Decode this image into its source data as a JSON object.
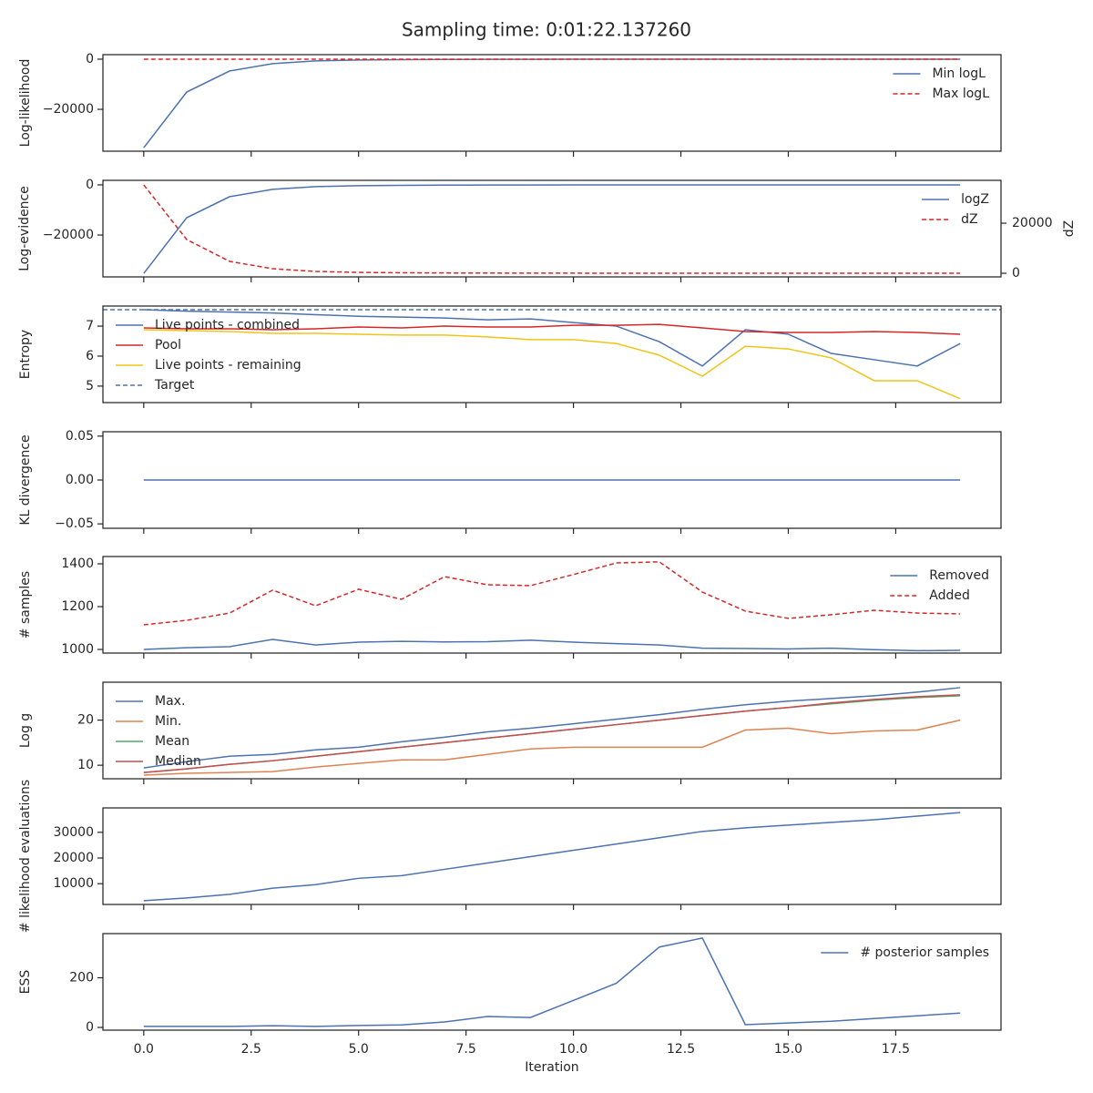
{
  "title": "Sampling time: 0:01:22.137260",
  "chart_data": [
    {
      "type": "line",
      "ylabel": "Log-likelihood",
      "x": [
        0,
        1,
        2,
        3,
        4,
        5,
        6,
        7,
        8,
        9,
        10,
        11,
        12,
        13,
        14,
        15,
        16,
        17,
        18,
        19
      ],
      "xlim": [
        -0.95,
        19.95
      ],
      "xticks": [
        {
          "value": 0,
          "label": "0.0"
        },
        2.5,
        {
          "value": 5,
          "label": "5.0"
        },
        7.5,
        {
          "value": 10,
          "label": "10.0"
        },
        12.5,
        {
          "value": 15,
          "label": "15.0"
        },
        17.5
      ],
      "ylim": [
        -36700,
        1800
      ],
      "yticks": [
        {
          "value": -20000,
          "label": "−20000"
        },
        0
      ],
      "legend": "upper right",
      "series": [
        {
          "name": "Min logL",
          "color": "#4c72b0",
          "linestyle": "solid",
          "values": [
            -35300,
            -13100,
            -4700,
            -1800,
            -700,
            -350,
            -200,
            -120,
            -80,
            -50,
            -30,
            -20,
            -15,
            -10,
            -8,
            -5,
            -4,
            -3,
            -2,
            -1
          ]
        },
        {
          "name": "Max logL",
          "color": "#d62728",
          "linestyle": "dashed",
          "values": [
            0,
            0,
            0,
            0,
            0,
            0,
            0,
            0,
            0,
            0,
            0,
            0,
            0,
            0,
            0,
            0,
            0,
            0,
            0,
            0
          ]
        }
      ]
    },
    {
      "type": "line",
      "ylabel": "Log-evidence",
      "y2label": "dZ",
      "x": [
        0,
        1,
        2,
        3,
        4,
        5,
        6,
        7,
        8,
        9,
        10,
        11,
        12,
        13,
        14,
        15,
        16,
        17,
        18,
        19
      ],
      "xlim": [
        -0.95,
        19.95
      ],
      "xticks": [
        {
          "value": 0,
          "label": "0.0"
        },
        2.5,
        {
          "value": 5,
          "label": "5.0"
        },
        7.5,
        {
          "value": 10,
          "label": "10.0"
        },
        12.5,
        {
          "value": 15,
          "label": "15.0"
        },
        17.5
      ],
      "ylim": [
        -36700,
        1800
      ],
      "yticks": [
        {
          "value": -20000,
          "label": "−20000"
        },
        0
      ],
      "y2lim": [
        -1450,
        37100
      ],
      "y2ticks": [
        0,
        20000
      ],
      "legend": "upper right",
      "series": [
        {
          "name": "logZ",
          "color": "#4c72b0",
          "linestyle": "solid",
          "values": [
            -35300,
            -13100,
            -4700,
            -1800,
            -700,
            -350,
            -200,
            -120,
            -80,
            -50,
            -30,
            -20,
            -15,
            -10,
            -8,
            -5,
            -4,
            -3,
            -2,
            -1
          ]
        },
        {
          "name": "dZ",
          "color": "#d62728",
          "linestyle": "dashed",
          "axis": "y2",
          "values": [
            35270,
            13450,
            4730,
            1820,
            730,
            350,
            200,
            120,
            80,
            50,
            30,
            20,
            15,
            10,
            8,
            5,
            4,
            3,
            2,
            1
          ]
        }
      ]
    },
    {
      "type": "line",
      "ylabel": "Entropy",
      "x": [
        0,
        1,
        2,
        3,
        4,
        5,
        6,
        7,
        8,
        9,
        10,
        11,
        12,
        13,
        14,
        15,
        16,
        17,
        18,
        19
      ],
      "xlim": [
        -0.95,
        19.95
      ],
      "xticks": [
        {
          "value": 0,
          "label": "0.0"
        },
        2.5,
        {
          "value": 5,
          "label": "5.0"
        },
        7.5,
        {
          "value": 10,
          "label": "10.0"
        },
        12.5,
        {
          "value": 15,
          "label": "15.0"
        },
        17.5
      ],
      "ylim": [
        4.45,
        7.67
      ],
      "yticks": [
        5,
        6,
        7
      ],
      "legend": "upper left",
      "series": [
        {
          "name": "Live points - combined",
          "color": "#4c72b0",
          "linestyle": "solid",
          "values": [
            7.55,
            7.5,
            7.47,
            7.44,
            7.38,
            7.33,
            7.3,
            7.27,
            7.21,
            7.24,
            7.12,
            7.0,
            6.48,
            5.67,
            6.88,
            6.73,
            6.09,
            5.88,
            5.67,
            6.42
          ]
        },
        {
          "name": "Pool",
          "color": "#d62728",
          "linestyle": "solid",
          "values": [
            6.94,
            6.91,
            6.91,
            6.88,
            6.91,
            6.97,
            6.94,
            7.0,
            6.97,
            6.97,
            7.03,
            7.03,
            7.06,
            6.94,
            6.82,
            6.79,
            6.79,
            6.82,
            6.79,
            6.73
          ]
        },
        {
          "name": "Live points - remaining",
          "color": "#f0c419",
          "linestyle": "solid",
          "values": [
            6.88,
            6.85,
            6.82,
            6.76,
            6.76,
            6.73,
            6.7,
            6.7,
            6.64,
            6.55,
            6.55,
            6.42,
            6.03,
            5.33,
            6.33,
            6.24,
            5.94,
            5.18,
            5.18,
            4.58
          ]
        }
      ],
      "hlines": [
        {
          "name": "Target",
          "color": "#4c72b0",
          "linestyle": "dashed",
          "value": 7.55
        }
      ]
    },
    {
      "type": "line",
      "ylabel": "KL divergence",
      "x": [
        0,
        1,
        2,
        3,
        4,
        5,
        6,
        7,
        8,
        9,
        10,
        11,
        12,
        13,
        14,
        15,
        16,
        17,
        18,
        19
      ],
      "xlim": [
        -0.95,
        19.95
      ],
      "xticks": [
        {
          "value": 0,
          "label": "0.0"
        },
        2.5,
        {
          "value": 5,
          "label": "5.0"
        },
        7.5,
        {
          "value": 10,
          "label": "10.0"
        },
        12.5,
        {
          "value": 15,
          "label": "15.0"
        },
        17.5
      ],
      "ylim": [
        -0.055,
        0.055
      ],
      "yticks": [
        {
          "value": -0.05,
          "label": "−0.05"
        },
        {
          "value": 0,
          "label": "0.00"
        },
        {
          "value": 0.05,
          "label": "0.05"
        }
      ],
      "series": [
        {
          "color": "#4c72b0",
          "linestyle": "solid",
          "values": [
            0,
            0,
            0,
            0,
            0,
            0,
            0,
            0,
            0,
            0,
            0,
            0,
            0,
            0,
            0,
            0,
            0,
            0,
            0,
            0
          ]
        }
      ]
    },
    {
      "type": "line",
      "ylabel": "# samples",
      "x": [
        0,
        1,
        2,
        3,
        4,
        5,
        6,
        7,
        8,
        9,
        10,
        11,
        12,
        13,
        14,
        15,
        16,
        17,
        18,
        19
      ],
      "xlim": [
        -0.95,
        19.95
      ],
      "xticks": [
        {
          "value": 0,
          "label": "0.0"
        },
        2.5,
        {
          "value": 5,
          "label": "5.0"
        },
        7.5,
        {
          "value": 10,
          "label": "10.0"
        },
        12.5,
        {
          "value": 15,
          "label": "15.0"
        },
        17.5
      ],
      "ylim": [
        983,
        1434
      ],
      "yticks": [
        1000,
        1200,
        1400
      ],
      "legend": "upper right",
      "series": [
        {
          "name": "Removed",
          "color": "#4c72b0",
          "linestyle": "solid",
          "values": [
            1000,
            1008,
            1013,
            1047,
            1021,
            1034,
            1038,
            1035,
            1036,
            1043,
            1034,
            1027,
            1021,
            1006,
            1004,
            1002,
            1006,
            999,
            994,
            996
          ]
        },
        {
          "name": "Added",
          "color": "#d62728",
          "linestyle": "dashed",
          "values": [
            1115,
            1136,
            1170,
            1277,
            1204,
            1281,
            1234,
            1340,
            1302,
            1298,
            1350,
            1404,
            1409,
            1268,
            1179,
            1145,
            1162,
            1183,
            1170,
            1166
          ]
        }
      ]
    },
    {
      "type": "line",
      "ylabel": "Log g",
      "x": [
        0,
        1,
        2,
        3,
        4,
        5,
        6,
        7,
        8,
        9,
        10,
        11,
        12,
        13,
        14,
        15,
        16,
        17,
        18,
        19
      ],
      "xlim": [
        -0.95,
        19.95
      ],
      "xticks": [
        {
          "value": 0,
          "label": "0.0"
        },
        2.5,
        {
          "value": 5,
          "label": "5.0"
        },
        7.5,
        {
          "value": 10,
          "label": "10.0"
        },
        12.5,
        {
          "value": 15,
          "label": "15.0"
        },
        17.5
      ],
      "ylim": [
        7.0,
        28.4
      ],
      "yticks": [
        10,
        20
      ],
      "legend": "upper left",
      "series": [
        {
          "name": "Max.",
          "color": "#4c72b0",
          "linestyle": "solid",
          "values": [
            9.4,
            10.8,
            12,
            12.4,
            13.4,
            14,
            15.2,
            16.2,
            17.4,
            18.2,
            19.2,
            20.2,
            21.2,
            22.4,
            23.4,
            24.2,
            24.8,
            25.4,
            26.2,
            27.2
          ]
        },
        {
          "name": "Min.",
          "color": "#dd8452",
          "linestyle": "solid",
          "values": [
            7.8,
            8.2,
            8.4,
            8.6,
            9.6,
            10.4,
            11.2,
            11.2,
            12.4,
            13.6,
            14,
            14,
            14,
            14,
            17.8,
            18.2,
            17,
            17.6,
            17.8,
            20
          ]
        },
        {
          "name": "Mean",
          "color": "#55a868",
          "linestyle": "solid",
          "values": [
            8.4,
            9.2,
            10.2,
            11,
            12,
            13,
            14,
            15,
            16,
            17,
            18,
            19,
            20,
            21,
            22,
            22.8,
            23.6,
            24.4,
            25,
            25.4
          ]
        },
        {
          "name": "Median",
          "color": "#c44e52",
          "linestyle": "solid",
          "values": [
            8.4,
            9.2,
            10.2,
            11,
            12,
            13,
            14,
            15,
            16,
            17,
            18,
            19,
            20,
            21,
            22,
            22.8,
            23.8,
            24.6,
            25.2,
            25.6
          ]
        }
      ]
    },
    {
      "type": "line",
      "ylabel": "# likelihood evaluations",
      "x": [
        0,
        1,
        2,
        3,
        4,
        5,
        6,
        7,
        8,
        9,
        10,
        11,
        12,
        13,
        14,
        15,
        16,
        17,
        18,
        19
      ],
      "xlim": [
        -0.95,
        19.95
      ],
      "xticks": [
        {
          "value": 0,
          "label": "0.0"
        },
        2.5,
        {
          "value": 5,
          "label": "5.0"
        },
        7.5,
        {
          "value": 10,
          "label": "10.0"
        },
        12.5,
        {
          "value": 15,
          "label": "15.0"
        },
        17.5
      ],
      "ylim": [
        1930,
        39500
      ],
      "yticks": [
        10000,
        20000,
        30000
      ],
      "series": [
        {
          "color": "#4c72b0",
          "linestyle": "solid",
          "values": [
            3400,
            4460,
            5860,
            8250,
            9650,
            12100,
            13160,
            15600,
            18070,
            20530,
            23000,
            25440,
            27900,
            30350,
            31750,
            32800,
            33860,
            34900,
            36300,
            37700
          ]
        }
      ]
    },
    {
      "type": "line",
      "ylabel": "ESS",
      "xlabel": "Iteration",
      "x": [
        0,
        1,
        2,
        3,
        4,
        5,
        6,
        7,
        8,
        9,
        10,
        11,
        12,
        13,
        14,
        15,
        16,
        17,
        18,
        19
      ],
      "xlim": [
        -0.95,
        19.95
      ],
      "xticks": [
        {
          "value": 0,
          "label": "0.0"
        },
        2.5,
        {
          "value": 5,
          "label": "5.0"
        },
        7.5,
        {
          "value": 10,
          "label": "10.0"
        },
        12.5,
        {
          "value": 15,
          "label": "15.0"
        },
        17.5
      ],
      "ylim": [
        -11,
        378
      ],
      "yticks": [
        0,
        200
      ],
      "legend": "upper right",
      "series": [
        {
          "name": "# posterior samples",
          "color": "#4c72b0",
          "linestyle": "solid",
          "values": [
            4,
            4,
            4,
            7,
            4,
            8,
            10,
            22,
            44,
            40,
            109,
            178,
            324,
            360,
            11,
            18,
            25,
            36,
            47,
            58
          ]
        }
      ]
    }
  ]
}
